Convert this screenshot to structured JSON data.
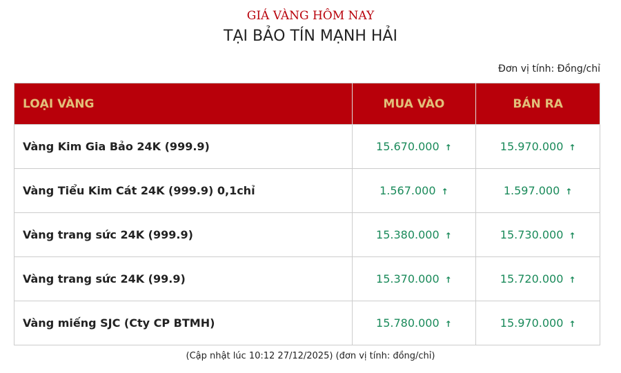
{
  "header": {
    "subtitle": "GIÁ VÀNG HÔM NAY",
    "title": "TẠI BẢO TÍN MẠNH HẢI",
    "unit": "Đơn vị tính: Đồng/chỉ"
  },
  "table": {
    "columns": [
      "LOẠI VÀNG",
      "MUA VÀO",
      "BÁN RA"
    ],
    "rows": [
      {
        "name": "Vàng Kim Gia Bảo 24K (999.9)",
        "buy": "15.670.000",
        "sell": "15.970.000"
      },
      {
        "name": "Vàng Tiểu Kim Cát 24K (999.9) 0,1chỉ",
        "buy": "1.567.000",
        "sell": "1.597.000"
      },
      {
        "name": "Vàng trang sức 24K (999.9)",
        "buy": "15.380.000",
        "sell": "15.730.000"
      },
      {
        "name": "Vàng trang sức 24K (99.9)",
        "buy": "15.370.000",
        "sell": "15.720.000"
      },
      {
        "name": "Vàng miếng SJC (Cty CP BTMH)",
        "buy": "15.780.000",
        "sell": "15.970.000"
      }
    ],
    "trend_icon": "arrow-up-icon",
    "arrow": "↑"
  },
  "footer": "(Cập nhật lúc 10:12 27/12/2025) (đơn vị tính: đồng/chỉ)",
  "colors": {
    "header_bg": "#b8000a",
    "header_text": "#e2c07a",
    "price": "#1a8a5a"
  }
}
